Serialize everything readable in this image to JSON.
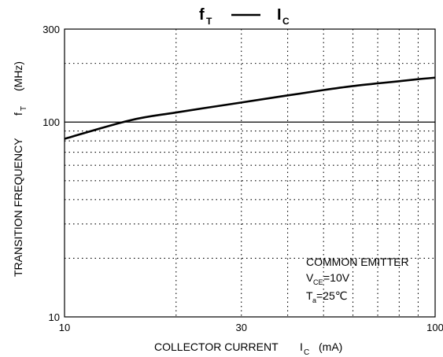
{
  "chart_data": {
    "type": "line",
    "title": {
      "left_main": "f",
      "left_sub": "T",
      "right_main": "I",
      "right_sub": "C"
    },
    "x_axis": {
      "scale": "log",
      "range": [
        10,
        100
      ],
      "tick_labels": [
        "10",
        "30",
        "100"
      ],
      "label_main": "COLLECTOR CURRENT",
      "label_symbol": "I",
      "label_symbol_sub": "C",
      "label_unit": "(mA)"
    },
    "y_axis": {
      "scale": "log",
      "range": [
        10,
        300
      ],
      "tick_labels": [
        "10",
        "100",
        "300"
      ],
      "label_main": "TRANSITION FREQUENCY",
      "label_symbol": "f",
      "label_symbol_sub": "T",
      "label_unit": "(MHz)"
    },
    "grid": true,
    "series": [
      {
        "x": [
          10,
          15,
          20,
          30,
          40,
          50,
          60,
          70,
          80,
          90,
          100
        ],
        "y": [
          82,
          102,
          112,
          126,
          137,
          146,
          153,
          158,
          162,
          166,
          169
        ]
      }
    ],
    "annotation": {
      "line1": "COMMON EMITTER",
      "line2_main": "V",
      "line2_sub": "CE",
      "line2_rest": "=10V",
      "line3_main": "T",
      "line3_sub": "a",
      "line3_rest": "=25℃"
    }
  }
}
